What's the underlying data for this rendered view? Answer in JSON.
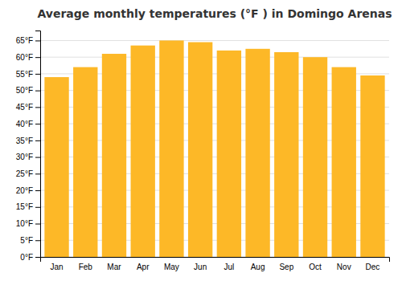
{
  "chart_data": {
    "type": "bar",
    "title": "Average monthly temperatures (°F ) in Domingo Arenas",
    "categories": [
      "Jan",
      "Feb",
      "Mar",
      "Apr",
      "May",
      "Jun",
      "Jul",
      "Aug",
      "Sep",
      "Oct",
      "Nov",
      "Dec"
    ],
    "values": [
      54.0,
      57.0,
      61.0,
      63.5,
      65.0,
      64.5,
      62.0,
      62.5,
      61.5,
      60.0,
      57.0,
      54.5
    ],
    "color": "#FDB827",
    "ylim": [
      0,
      68
    ],
    "yticks": [
      {
        "value": 0,
        "label": "0°F"
      },
      {
        "value": 5,
        "label": "5°F"
      },
      {
        "value": 10,
        "label": "10°F"
      },
      {
        "value": 15,
        "label": "15°F"
      },
      {
        "value": 20,
        "label": "20°F"
      },
      {
        "value": 25,
        "label": "25°F"
      },
      {
        "value": 30,
        "label": "30°F"
      },
      {
        "value": 35,
        "label": "35°F"
      },
      {
        "value": 40,
        "label": "40°F"
      },
      {
        "value": 45,
        "label": "45°F"
      },
      {
        "value": 50,
        "label": "50°F"
      },
      {
        "value": 55,
        "label": "55°F"
      },
      {
        "value": 60,
        "label": "60°F"
      },
      {
        "value": 65,
        "label": "65°F"
      }
    ],
    "grid": true
  }
}
